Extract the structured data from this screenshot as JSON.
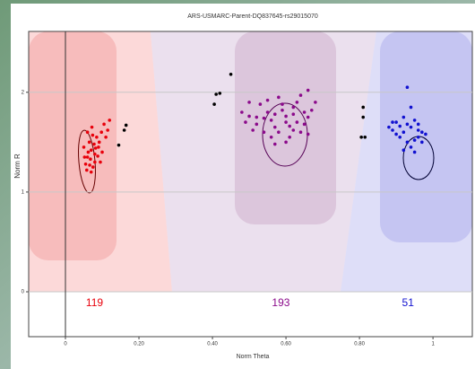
{
  "chart_data": {
    "type": "scatter",
    "title": "ARS-USMARC-Parent-DQ837645-rs29015070",
    "x_label": "Norm Theta",
    "y_label": "Norm R",
    "xlim": [
      -0.1,
      1.107
    ],
    "ylim": [
      0,
      2.61
    ],
    "xticks": [
      0,
      {
        "value": 0.2,
        "label": "0.20"
      },
      {
        "value": 0.4,
        "label": "0.40"
      },
      {
        "value": 0.6,
        "label": "0.60"
      },
      {
        "value": 0.8,
        "label": "0.80"
      },
      1
    ],
    "yticks": [
      0,
      1,
      2
    ],
    "grid": true,
    "series": [
      {
        "color": "#e8000b",
        "count": 119,
        "x": [
          0.06,
          0.07,
          0.08,
          0.065,
          0.075,
          0.09,
          0.055,
          0.085,
          0.07,
          0.1,
          0.06,
          0.08,
          0.095,
          0.05,
          0.072,
          0.11,
          0.12,
          0.115,
          0.068,
          0.078,
          0.058,
          0.088,
          0.062,
          0.092,
          0.105,
          0.066,
          0.074,
          0.082,
          0.098,
          0.052
        ],
        "values": [
          1.35,
          1.42,
          1.3,
          1.5,
          1.25,
          1.45,
          1.28,
          1.55,
          1.2,
          1.4,
          1.6,
          1.38,
          1.3,
          1.45,
          1.65,
          1.55,
          1.72,
          1.62,
          1.33,
          1.48,
          1.22,
          1.36,
          1.4,
          1.5,
          1.68,
          1.27,
          1.57,
          1.44,
          1.6,
          1.35
        ]
      },
      {
        "color": "#8b0a8b",
        "count": 193,
        "x": [
          0.5,
          0.52,
          0.55,
          0.57,
          0.6,
          0.62,
          0.64,
          0.66,
          0.58,
          0.54,
          0.61,
          0.63,
          0.49,
          0.51,
          0.56,
          0.59,
          0.65,
          0.67,
          0.53,
          0.6,
          0.62,
          0.57,
          0.55,
          0.58,
          0.64,
          0.66,
          0.52,
          0.48,
          0.6,
          0.63,
          0.68,
          0.56,
          0.61,
          0.59,
          0.54,
          0.65,
          0.57,
          0.62,
          0.5,
          0.66
        ],
        "values": [
          1.9,
          1.75,
          1.8,
          1.65,
          1.7,
          1.85,
          1.6,
          1.75,
          1.95,
          1.6,
          1.55,
          1.9,
          1.7,
          1.62,
          1.72,
          1.82,
          1.68,
          1.82,
          1.88,
          1.5,
          1.62,
          1.78,
          1.92,
          1.6,
          1.97,
          1.58,
          1.68,
          1.8,
          1.76,
          1.7,
          1.9,
          1.55,
          1.66,
          1.88,
          1.74,
          1.8,
          1.48,
          1.78,
          1.76,
          2.02
        ]
      },
      {
        "color": "#1010d0",
        "count": 51,
        "x": [
          0.92,
          0.94,
          0.96,
          0.9,
          0.93,
          0.95,
          0.97,
          0.89,
          0.91,
          0.94,
          0.96,
          0.92,
          0.98,
          0.95,
          0.9,
          0.93,
          0.97,
          0.88,
          0.94,
          0.92,
          0.96,
          0.91,
          0.95,
          0.93,
          0.89
        ],
        "values": [
          1.6,
          1.65,
          1.55,
          1.7,
          1.5,
          1.72,
          1.6,
          1.62,
          1.55,
          1.45,
          1.68,
          1.75,
          1.58,
          1.4,
          1.58,
          1.68,
          1.5,
          1.65,
          1.85,
          1.42,
          1.62,
          1.66,
          1.52,
          2.05,
          1.7
        ]
      },
      {
        "color": "#000000",
        "x": [
          0.16,
          0.165,
          0.145,
          0.41,
          0.42,
          0.45,
          0.405,
          0.81,
          0.805,
          0.815,
          0.81
        ],
        "values": [
          1.62,
          1.67,
          1.47,
          1.98,
          1.99,
          2.18,
          1.88,
          1.85,
          1.55,
          1.55,
          1.75
        ]
      }
    ]
  }
}
